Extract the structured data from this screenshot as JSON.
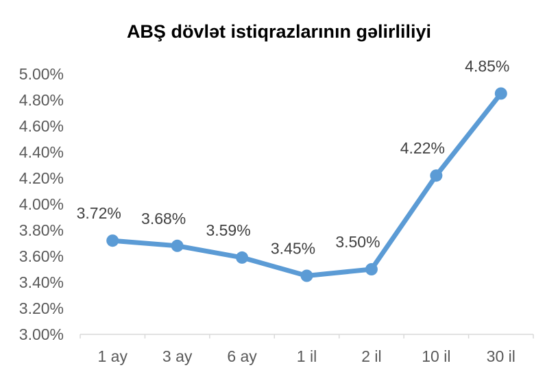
{
  "chart_data": {
    "type": "line",
    "title": "ABŞ dövlət istiqrazlarının gəlirliliyi",
    "xlabel": "",
    "ylabel": "",
    "categories": [
      "1 ay",
      "3 ay",
      "6 ay",
      "1 il",
      "2 il",
      "10 il",
      "30 il"
    ],
    "series": [
      {
        "values": [
          3.72,
          3.68,
          3.59,
          3.45,
          3.5,
          4.22,
          4.85
        ],
        "labels": [
          "3.72%",
          "3.68%",
          "3.59%",
          "3.45%",
          "3.50%",
          "4.22%",
          "4.85%"
        ],
        "color": "#5B9BD5"
      }
    ],
    "ylim": [
      3.0,
      5.0
    ],
    "yticks": [
      3.0,
      3.2,
      3.4,
      3.6,
      3.8,
      4.0,
      4.2,
      4.4,
      4.6,
      4.8,
      5.0
    ],
    "ytick_labels": [
      "3.00%",
      "3.20%",
      "3.40%",
      "3.60%",
      "3.80%",
      "4.00%",
      "4.20%",
      "4.40%",
      "4.60%",
      "4.80%",
      "5.00%"
    ],
    "grid": false,
    "legend": "none"
  }
}
